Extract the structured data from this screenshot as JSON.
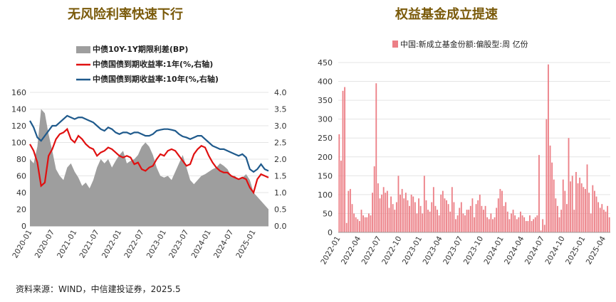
{
  "footer": "资料来源：WIND，中信建投证券，2025.5",
  "chart_data": [
    {
      "type": "area",
      "title": "无风险利率快速下行",
      "x_ticks": [
        "2020-01",
        "2020-07",
        "2021-01",
        "2021-07",
        "2022-01",
        "2022-07",
        "2023-01",
        "2023-07",
        "2024-01",
        "2024-07",
        "2025-01"
      ],
      "left_axis": {
        "ylim": [
          0,
          160
        ],
        "ticks": [
          0,
          20,
          40,
          60,
          80,
          100,
          120,
          140,
          160
        ]
      },
      "right_axis": {
        "ylim": [
          0.0,
          4.0
        ],
        "ticks": [
          "0.0",
          "0.5",
          "1.0",
          "1.5",
          "2.0",
          "2.5",
          "3.0",
          "3.5",
          "4.0"
        ]
      },
      "legend_placement": "top-left",
      "grid": true,
      "series": [
        {
          "name": "中债10Y-1Y期限利差(BP)",
          "kind": "area",
          "axis": "left",
          "color": "#9e9e9e",
          "x": [
            "2020-01",
            "2020-02",
            "2020-03",
            "2020-04",
            "2020-05",
            "2020-06",
            "2020-07",
            "2020-08",
            "2020-09",
            "2020-10",
            "2020-11",
            "2020-12",
            "2021-01",
            "2021-02",
            "2021-03",
            "2021-04",
            "2021-05",
            "2021-06",
            "2021-07",
            "2021-08",
            "2021-09",
            "2021-10",
            "2021-11",
            "2021-12",
            "2022-01",
            "2022-02",
            "2022-03",
            "2022-04",
            "2022-05",
            "2022-06",
            "2022-07",
            "2022-08",
            "2022-09",
            "2022-10",
            "2022-11",
            "2022-12",
            "2023-01",
            "2023-02",
            "2023-03",
            "2023-04",
            "2023-05",
            "2023-06",
            "2023-07",
            "2023-08",
            "2023-09",
            "2023-10",
            "2023-11",
            "2023-12",
            "2024-01",
            "2024-02",
            "2024-03",
            "2024-04",
            "2024-05",
            "2024-06",
            "2024-07",
            "2024-08",
            "2024-09",
            "2024-10",
            "2024-11",
            "2024-12",
            "2025-01",
            "2025-02",
            "2025-03",
            "2025-04",
            "2025-05"
          ],
          "values": [
            80,
            75,
            95,
            140,
            135,
            110,
            90,
            68,
            60,
            55,
            70,
            75,
            65,
            58,
            48,
            52,
            45,
            55,
            70,
            80,
            75,
            80,
            70,
            78,
            85,
            90,
            75,
            78,
            80,
            85,
            95,
            100,
            95,
            85,
            70,
            60,
            58,
            60,
            55,
            65,
            75,
            85,
            70,
            55,
            50,
            55,
            60,
            62,
            65,
            68,
            70,
            75,
            72,
            68,
            60,
            60,
            55,
            58,
            62,
            55,
            40,
            35,
            30,
            25,
            20
          ]
        },
        {
          "name": "中债国债到期收益率:1年(%,右轴)",
          "kind": "line",
          "axis": "right",
          "color": "#e01010",
          "x": [
            "2020-01",
            "2020-02",
            "2020-03",
            "2020-04",
            "2020-05",
            "2020-06",
            "2020-07",
            "2020-08",
            "2020-09",
            "2020-10",
            "2020-11",
            "2020-12",
            "2021-01",
            "2021-02",
            "2021-03",
            "2021-04",
            "2021-05",
            "2021-06",
            "2021-07",
            "2021-08",
            "2021-09",
            "2021-10",
            "2021-11",
            "2021-12",
            "2022-01",
            "2022-02",
            "2022-03",
            "2022-04",
            "2022-05",
            "2022-06",
            "2022-07",
            "2022-08",
            "2022-09",
            "2022-10",
            "2022-11",
            "2022-12",
            "2023-01",
            "2023-02",
            "2023-03",
            "2023-04",
            "2023-05",
            "2023-06",
            "2023-07",
            "2023-08",
            "2023-09",
            "2023-10",
            "2023-11",
            "2023-12",
            "2024-01",
            "2024-02",
            "2024-03",
            "2024-04",
            "2024-05",
            "2024-06",
            "2024-07",
            "2024-08",
            "2024-09",
            "2024-10",
            "2024-11",
            "2024-12",
            "2025-01",
            "2025-02",
            "2025-03",
            "2025-04",
            "2025-05"
          ],
          "values": [
            2.45,
            2.25,
            1.9,
            1.2,
            1.3,
            2.1,
            2.3,
            2.6,
            2.75,
            2.8,
            2.9,
            2.6,
            2.5,
            2.7,
            2.6,
            2.45,
            2.35,
            2.3,
            2.1,
            2.2,
            2.25,
            2.35,
            2.3,
            2.2,
            2.1,
            2.05,
            2.1,
            2.05,
            1.85,
            1.9,
            1.7,
            1.65,
            1.75,
            1.8,
            2.0,
            2.15,
            2.1,
            2.25,
            2.3,
            2.25,
            2.1,
            1.95,
            1.8,
            1.85,
            2.15,
            2.3,
            2.4,
            2.35,
            2.1,
            1.9,
            1.75,
            1.65,
            1.6,
            1.6,
            1.5,
            1.45,
            1.4,
            1.45,
            1.4,
            1.15,
            1.0,
            1.4,
            1.55,
            1.5,
            1.45
          ]
        },
        {
          "name": "中债国债到期收益率:10年(%,右轴)",
          "kind": "line",
          "axis": "right",
          "color": "#1f5a8c",
          "x": [
            "2020-01",
            "2020-02",
            "2020-03",
            "2020-04",
            "2020-05",
            "2020-06",
            "2020-07",
            "2020-08",
            "2020-09",
            "2020-10",
            "2020-11",
            "2020-12",
            "2021-01",
            "2021-02",
            "2021-03",
            "2021-04",
            "2021-05",
            "2021-06",
            "2021-07",
            "2021-08",
            "2021-09",
            "2021-10",
            "2021-11",
            "2021-12",
            "2022-01",
            "2022-02",
            "2022-03",
            "2022-04",
            "2022-05",
            "2022-06",
            "2022-07",
            "2022-08",
            "2022-09",
            "2022-10",
            "2022-11",
            "2022-12",
            "2023-01",
            "2023-02",
            "2023-03",
            "2023-04",
            "2023-05",
            "2023-06",
            "2023-07",
            "2023-08",
            "2023-09",
            "2023-10",
            "2023-11",
            "2023-12",
            "2024-01",
            "2024-02",
            "2024-03",
            "2024-04",
            "2024-05",
            "2024-06",
            "2024-07",
            "2024-08",
            "2024-09",
            "2024-10",
            "2024-11",
            "2024-12",
            "2025-01",
            "2025-02",
            "2025-03",
            "2025-04",
            "2025-05"
          ],
          "values": [
            3.15,
            2.95,
            2.65,
            2.55,
            2.7,
            2.85,
            3.0,
            3.0,
            3.1,
            3.2,
            3.3,
            3.25,
            3.2,
            3.25,
            3.25,
            3.2,
            3.15,
            3.1,
            3.0,
            2.9,
            2.85,
            2.95,
            2.9,
            2.8,
            2.75,
            2.8,
            2.8,
            2.75,
            2.8,
            2.8,
            2.75,
            2.7,
            2.7,
            2.75,
            2.85,
            2.88,
            2.9,
            2.9,
            2.88,
            2.85,
            2.75,
            2.68,
            2.65,
            2.6,
            2.65,
            2.7,
            2.7,
            2.6,
            2.5,
            2.4,
            2.35,
            2.3,
            2.3,
            2.25,
            2.2,
            2.15,
            2.1,
            2.15,
            2.05,
            1.7,
            1.62,
            1.7,
            1.85,
            1.7,
            1.65
          ]
        }
      ]
    },
    {
      "type": "bar",
      "title": "权益基金成立提速",
      "ylim": [
        0,
        450
      ],
      "y_ticks": [
        0,
        50,
        100,
        150,
        200,
        250,
        300,
        350,
        400,
        450
      ],
      "x_ticks": [
        "2022-01",
        "2022-04",
        "2022-07",
        "2022-10",
        "2023-01",
        "2023-04",
        "2023-07",
        "2023-10",
        "2024-01",
        "2024-04",
        "2024-07",
        "2024-10",
        "2025-01",
        "2025-04"
      ],
      "legend_placement": "top-left",
      "grid": true,
      "series": [
        {
          "name": "中国:新成立基金份额:偏股型:周 亿份",
          "color": "#ec7f86",
          "values": [
            260,
            190,
            375,
            385,
            25,
            110,
            115,
            75,
            50,
            40,
            35,
            30,
            60,
            45,
            40,
            40,
            50,
            45,
            105,
            175,
            395,
            130,
            90,
            100,
            120,
            105,
            110,
            65,
            95,
            75,
            60,
            80,
            150,
            100,
            115,
            90,
            105,
            85,
            70,
            100,
            95,
            80,
            50,
            90,
            70,
            50,
            150,
            85,
            60,
            55,
            80,
            120,
            70,
            60,
            45,
            100,
            110,
            90,
            85,
            75,
            55,
            120,
            80,
            35,
            45,
            65,
            80,
            50,
            45,
            60,
            60,
            70,
            90,
            40,
            75,
            85,
            100,
            70,
            60,
            70,
            40,
            35,
            50,
            35,
            40,
            65,
            90,
            115,
            110,
            70,
            80,
            55,
            35,
            50,
            60,
            45,
            35,
            40,
            55,
            45,
            40,
            30,
            30,
            45,
            30,
            35,
            40,
            45,
            205,
            5,
            35,
            20,
            300,
            445,
            230,
            185,
            140,
            90,
            70,
            40,
            60,
            140,
            110,
            75,
            250,
            135,
            150,
            60,
            160,
            130,
            145,
            130,
            120,
            115,
            180,
            105,
            50,
            125,
            110,
            95,
            80,
            65,
            75,
            60,
            55,
            70,
            40
          ]
        }
      ]
    }
  ]
}
